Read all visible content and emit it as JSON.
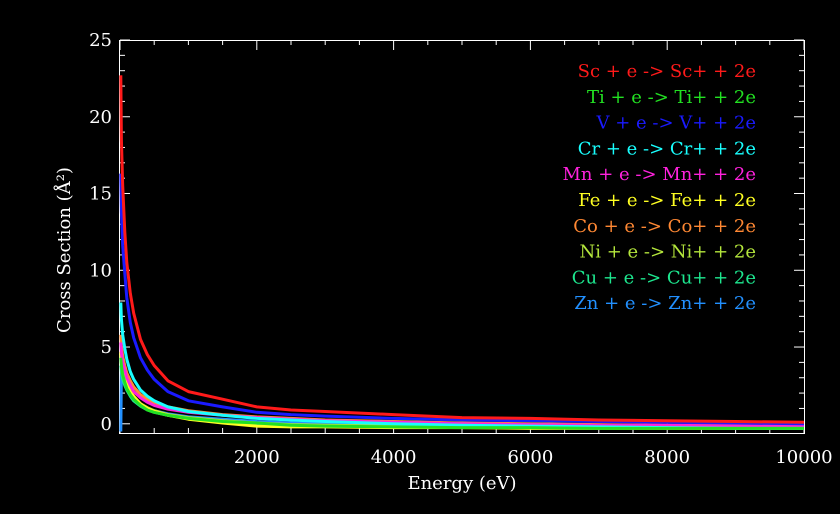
{
  "chart_data": {
    "type": "line",
    "title": "",
    "xlabel": "Energy (eV)",
    "ylabel": "Cross Section (Å²)",
    "xlim": [
      0,
      10000
    ],
    "ylim": [
      -0.6,
      25
    ],
    "x_ticks": [
      2000,
      4000,
      6000,
      8000,
      10000
    ],
    "x_tick_labels": [
      "2000",
      "4000",
      "6000",
      "8000",
      "10000"
    ],
    "y_ticks": [
      0,
      5,
      10,
      15,
      20,
      25
    ],
    "y_tick_labels": [
      "0",
      "5",
      "10",
      "15",
      "20",
      "25"
    ],
    "legend_position": "top-right",
    "background": "#000000",
    "axis_color": "#ffffff",
    "x": [
      12,
      20,
      40,
      70,
      100,
      150,
      200,
      300,
      400,
      500,
      700,
      1000,
      1500,
      2000,
      2500,
      3000,
      4000,
      5000,
      6000,
      7000,
      8000,
      9000,
      10000
    ],
    "series": [
      {
        "name": "Sc + e -> Sc+ + 2e",
        "color": "#ff1a1a",
        "values": [
          22.7,
          18.5,
          15.5,
          12.5,
          10.5,
          8.5,
          7.2,
          5.5,
          4.5,
          3.8,
          2.8,
          2.1,
          1.6,
          1.1,
          0.9,
          0.8,
          0.6,
          0.4,
          0.35,
          0.25,
          0.2,
          0.15,
          0.1
        ]
      },
      {
        "name": "Ti + e -> Ti+ + 2e",
        "color": "#22e022",
        "values": [
          4.3,
          3.8,
          3.2,
          2.7,
          2.3,
          1.9,
          1.6,
          1.2,
          0.9,
          0.75,
          0.55,
          0.35,
          0.15,
          0.05,
          -0.1,
          -0.15,
          -0.2,
          -0.25,
          -0.25,
          -0.3,
          -0.3,
          -0.3,
          -0.3
        ]
      },
      {
        "name": "V + e -> V+ + 2e",
        "color": "#1a1aff",
        "values": [
          16.3,
          13.8,
          11.6,
          9.8,
          8.2,
          6.6,
          5.6,
          4.3,
          3.5,
          2.9,
          2.1,
          1.5,
          1.1,
          0.75,
          0.6,
          0.5,
          0.35,
          0.25,
          0.2,
          0.15,
          0.1,
          0.05,
          0.0
        ]
      },
      {
        "name": "Cr + e -> Cr+ + 2e",
        "color": "#19ffff",
        "values": [
          7.9,
          6.8,
          5.8,
          4.9,
          4.2,
          3.4,
          2.9,
          2.2,
          1.8,
          1.5,
          1.1,
          0.8,
          0.55,
          0.35,
          0.25,
          0.15,
          0.0,
          -0.1,
          -0.15,
          -0.2,
          -0.25,
          -0.3,
          -0.3
        ]
      },
      {
        "name": "Mn + e -> Mn+ + 2e",
        "color": "#ff22dd",
        "values": [
          5.3,
          4.6,
          4.0,
          3.5,
          3.0,
          2.5,
          2.1,
          1.7,
          1.4,
          1.2,
          0.95,
          0.75,
          0.55,
          0.4,
          0.3,
          0.2,
          0.1,
          0.0,
          -0.05,
          -0.1,
          -0.1,
          -0.15,
          -0.15
        ]
      },
      {
        "name": "Fe + e -> Fe+ + 2e",
        "color": "#ffff22",
        "values": [
          4.7,
          4.1,
          3.5,
          3.0,
          2.6,
          2.1,
          1.8,
          1.3,
          1.0,
          0.8,
          0.55,
          0.3,
          0.05,
          -0.15,
          -0.2,
          -0.2,
          -0.25,
          -0.25,
          -0.3,
          -0.3,
          -0.3,
          -0.3,
          -0.3
        ]
      },
      {
        "name": "Co + e -> Co+ + 2e",
        "color": "#ff8833",
        "values": [
          5.8,
          5.1,
          4.4,
          3.8,
          3.3,
          2.8,
          2.4,
          1.9,
          1.6,
          1.4,
          1.1,
          0.85,
          0.6,
          0.45,
          0.35,
          0.25,
          0.15,
          0.05,
          0.0,
          -0.05,
          -0.1,
          -0.1,
          -0.15
        ]
      },
      {
        "name": "Ni + e -> Ni+ + 2e",
        "color": "#b4e63c",
        "values": [
          4.5,
          3.9,
          3.4,
          2.9,
          2.5,
          2.0,
          1.7,
          1.3,
          1.05,
          0.85,
          0.6,
          0.4,
          0.2,
          0.05,
          -0.05,
          -0.1,
          -0.15,
          -0.2,
          -0.2,
          -0.25,
          -0.25,
          -0.25,
          -0.25
        ]
      },
      {
        "name": "Cu + e -> Cu+ + 2e",
        "color": "#1de78f",
        "values": [
          3.8,
          3.4,
          2.9,
          2.5,
          2.2,
          1.8,
          1.5,
          1.15,
          0.9,
          0.75,
          0.55,
          0.35,
          0.15,
          0.0,
          -0.05,
          -0.1,
          -0.15,
          -0.2,
          -0.2,
          -0.25,
          -0.25,
          -0.25,
          -0.25
        ]
      },
      {
        "name": "Zn + e -> Zn+ + 2e",
        "color": "#2290ff",
        "values": [
          -0.5,
          3.4,
          3.0,
          2.6,
          2.3,
          1.9,
          1.6,
          1.25,
          1.0,
          0.85,
          0.65,
          0.45,
          0.3,
          0.15,
          0.05,
          0.0,
          -0.1,
          -0.15,
          -0.2,
          -0.2,
          -0.25,
          -0.25,
          -0.25
        ]
      }
    ]
  }
}
